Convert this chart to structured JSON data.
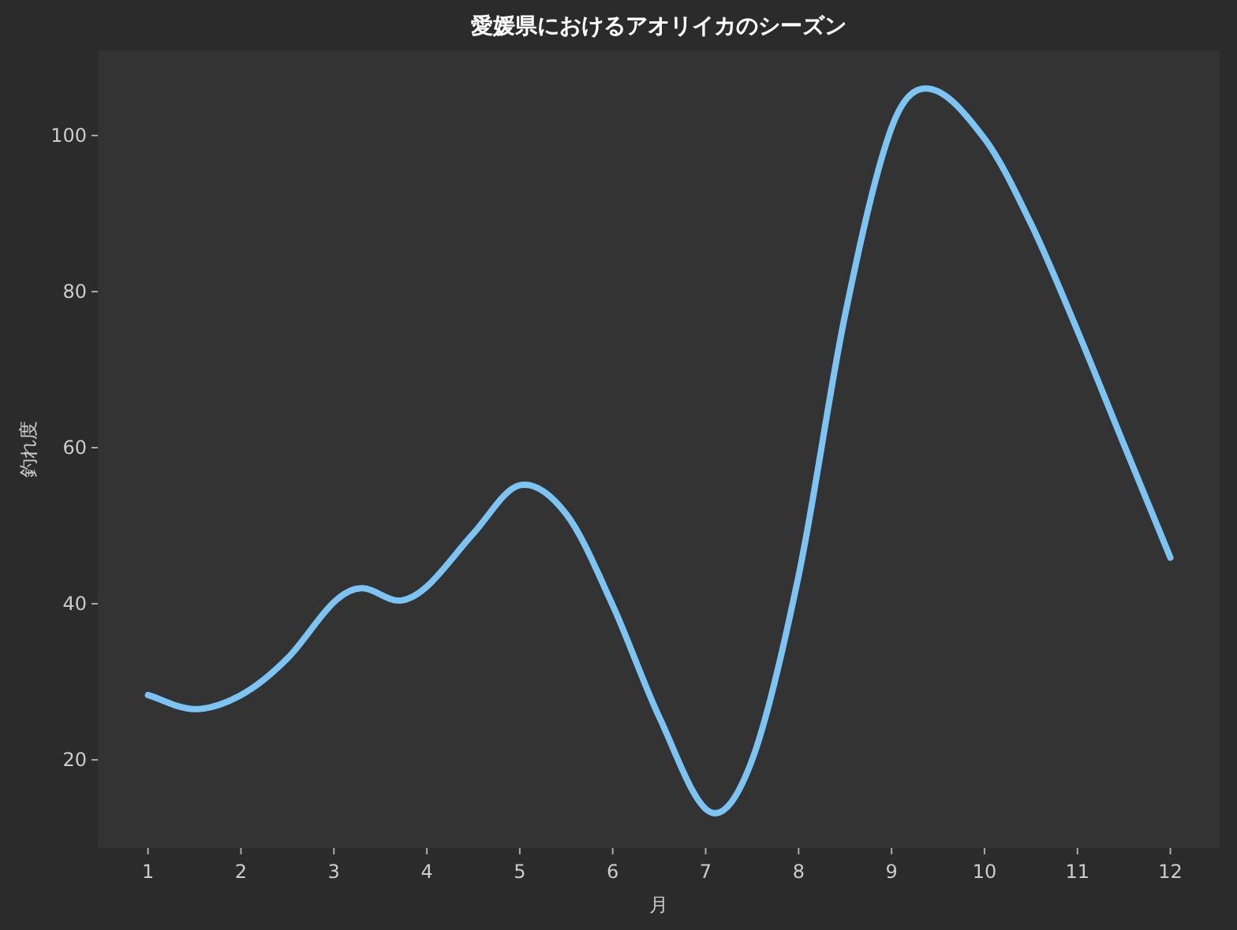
{
  "chart_data": {
    "type": "line",
    "title": "愛媛県におけるアオリイカのシーズン",
    "xlabel": "月",
    "ylabel": "釣れ度",
    "xlim": [
      0.46,
      12.53
    ],
    "ylim": [
      8.7,
      110.9
    ],
    "xticks": [
      1,
      2,
      3,
      4,
      5,
      6,
      7,
      8,
      9,
      10,
      11,
      12
    ],
    "yticks": [
      20,
      40,
      60,
      80,
      100
    ],
    "grid": false,
    "marker": "none",
    "line_style": "solid",
    "series": [
      {
        "color": "#7cc4f4",
        "x": [
          1,
          1.5,
          2,
          2.5,
          3,
          3.3,
          3.7,
          4,
          4.5,
          5,
          5.5,
          6,
          6.5,
          7.05,
          7.5,
          8,
          8.5,
          9,
          9.4,
          10,
          10.5,
          11,
          11.5,
          12
        ],
        "values": [
          28.3,
          26.5,
          28.3,
          33,
          40.2,
          42,
          40.4,
          42.2,
          49,
          55.2,
          51.5,
          39.8,
          25.5,
          13.3,
          20,
          43.6,
          77,
          101,
          106,
          99.6,
          88.7,
          75,
          60.4,
          45.9
        ]
      }
    ]
  }
}
